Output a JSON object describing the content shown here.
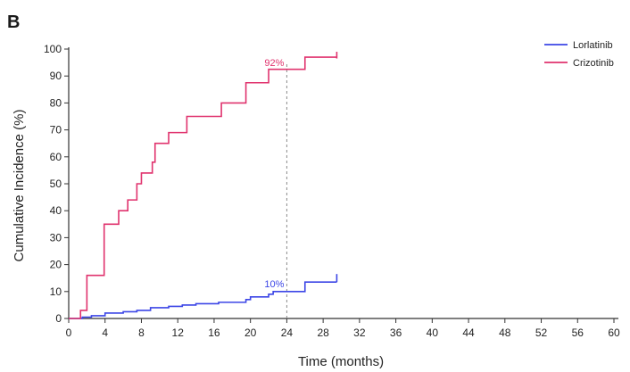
{
  "chart_data": {
    "type": "line",
    "panel_label": "B",
    "title": "",
    "xlabel": "Time (months)",
    "ylabel": "Cumulative Incidence (%)",
    "xlim": [
      0,
      60
    ],
    "ylim": [
      0,
      100
    ],
    "xticks": [
      0,
      4,
      8,
      12,
      16,
      20,
      24,
      28,
      32,
      36,
      40,
      44,
      48,
      52,
      56,
      60
    ],
    "yticks": [
      0,
      10,
      20,
      30,
      40,
      50,
      60,
      70,
      80,
      90,
      100
    ],
    "step": true,
    "grid": false,
    "legend_position": "top-right",
    "reference_line_x": 24,
    "series": [
      {
        "name": "Lorlatinib",
        "color": "#3c46e6",
        "end_marker_x": 29.5,
        "end_marker_y": [
          13.5,
          16.5
        ],
        "points": [
          [
            0,
            0
          ],
          [
            1.5,
            0.5
          ],
          [
            2.5,
            1
          ],
          [
            4,
            2
          ],
          [
            6,
            2.5
          ],
          [
            7.5,
            3
          ],
          [
            9,
            4
          ],
          [
            11,
            4.5
          ],
          [
            12.5,
            5
          ],
          [
            14,
            5.5
          ],
          [
            16.5,
            6
          ],
          [
            19.5,
            7
          ],
          [
            20,
            8
          ],
          [
            22,
            9
          ],
          [
            22.5,
            10
          ],
          [
            26,
            13.5
          ],
          [
            29.5,
            13.5
          ]
        ],
        "annotation": {
          "text": "10%",
          "x": 24,
          "y": 10,
          "color": "#3c46e6"
        }
      },
      {
        "name": "Crizotinib",
        "color": "#e0336e",
        "end_marker_x": 29.5,
        "end_marker_y": [
          96.5,
          99
        ],
        "points": [
          [
            0,
            0
          ],
          [
            1.3,
            3
          ],
          [
            2,
            16
          ],
          [
            3.5,
            16
          ],
          [
            3.9,
            35
          ],
          [
            5.5,
            40
          ],
          [
            6.5,
            44
          ],
          [
            7.5,
            50
          ],
          [
            8,
            54
          ],
          [
            9.2,
            58
          ],
          [
            9.5,
            65
          ],
          [
            11,
            69
          ],
          [
            13,
            75
          ],
          [
            16.8,
            80
          ],
          [
            19.5,
            87.5
          ],
          [
            22,
            92.5
          ],
          [
            26,
            97
          ],
          [
            29.5,
            97
          ]
        ],
        "annotation": {
          "text": "92%",
          "x": 24,
          "y": 92,
          "color": "#e0336e"
        }
      }
    ]
  }
}
